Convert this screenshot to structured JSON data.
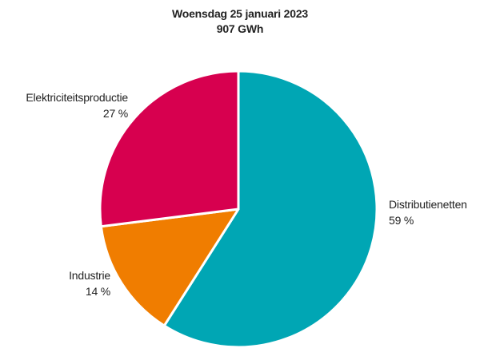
{
  "chart_data": {
    "type": "pie",
    "title": "Woensdag 25 januari 2023",
    "subtitle": "907 GWh",
    "slices": [
      {
        "name": "Distributienetten",
        "value": 59,
        "value_label": "59 %",
        "color": "#00A6B4"
      },
      {
        "name": "Industrie",
        "value": 14,
        "value_label": "14 %",
        "color": "#F07D00"
      },
      {
        "name": "Elektriciteitsproductie",
        "value": 27,
        "value_label": "27 %",
        "color": "#D7004F"
      }
    ],
    "start_angle": "12 o'clock",
    "direction": "clockwise"
  }
}
